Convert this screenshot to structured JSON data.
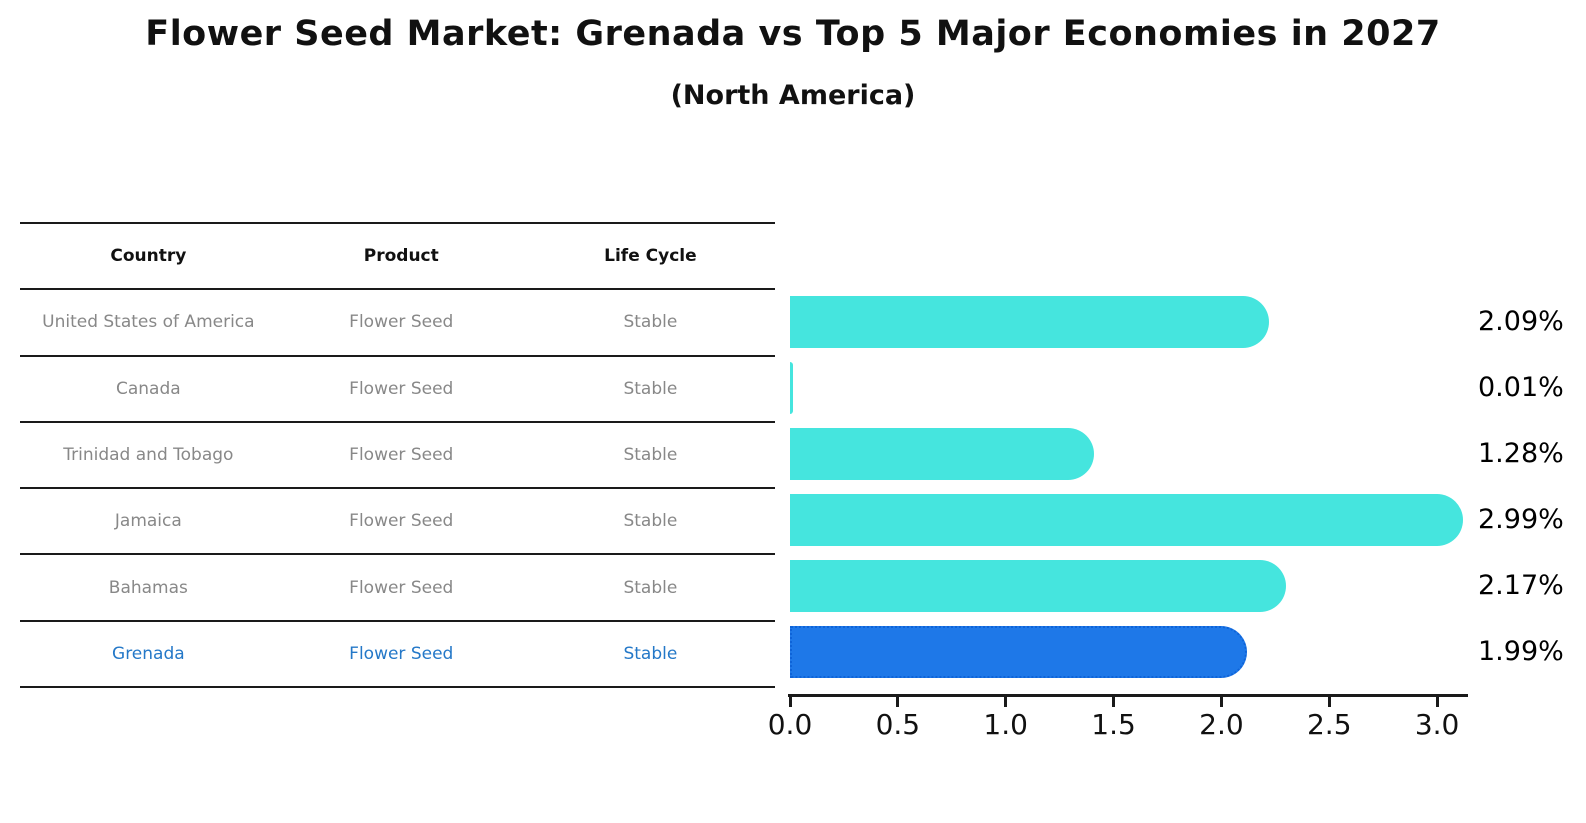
{
  "page": {
    "title": "Flower Seed Market: Grenada vs Top 5 Major Economies in 2027",
    "subtitle": "(North America)"
  },
  "table": {
    "headers": [
      "Country",
      "Product",
      "Life Cycle"
    ],
    "rows": [
      {
        "country": "United States of America",
        "product": "Flower Seed",
        "life_cycle": "Stable"
      },
      {
        "country": "Canada",
        "product": "Flower Seed",
        "life_cycle": "Stable"
      },
      {
        "country": "Trinidad and Tobago",
        "product": "Flower Seed",
        "life_cycle": "Stable"
      },
      {
        "country": "Jamaica",
        "product": "Flower Seed",
        "life_cycle": "Stable"
      },
      {
        "country": "Bahamas",
        "product": "Flower Seed",
        "life_cycle": "Stable"
      },
      {
        "country": "Grenada",
        "product": "Flower Seed",
        "life_cycle": "Stable"
      }
    ],
    "highlighted_country": "Grenada"
  },
  "chart_data": {
    "type": "bar",
    "orientation": "horizontal",
    "title": "Flower Seed Market: Grenada vs Top 5 Major Economies in 2027",
    "subtitle": "(North America)",
    "categories": [
      "United States of America",
      "Canada",
      "Trinidad and Tobago",
      "Jamaica",
      "Bahamas",
      "Grenada"
    ],
    "values": [
      2.09,
      0.01,
      1.28,
      2.99,
      2.17,
      1.99
    ],
    "value_labels": [
      "2.09%",
      "0.01%",
      "1.28%",
      "2.99%",
      "2.17%",
      "1.99%"
    ],
    "x_ticks": [
      "0.0",
      "0.5",
      "1.0",
      "1.5",
      "2.0",
      "2.5",
      "3.0"
    ],
    "xlim": [
      0.0,
      3.15
    ],
    "grid": false,
    "legend": "none",
    "bar_color": "#45E5DE",
    "highlight_index": 5,
    "highlight_color": "#1E78E8",
    "highlight_border_color": "#0E63D8"
  },
  "colors": {
    "title_text": "#111111",
    "table_header_text": "#111111",
    "table_body_text": "#888888",
    "highlight_row_text": "#2478C8",
    "rule_lines": "#1A1A1A",
    "value_label_text": "#000000"
  }
}
